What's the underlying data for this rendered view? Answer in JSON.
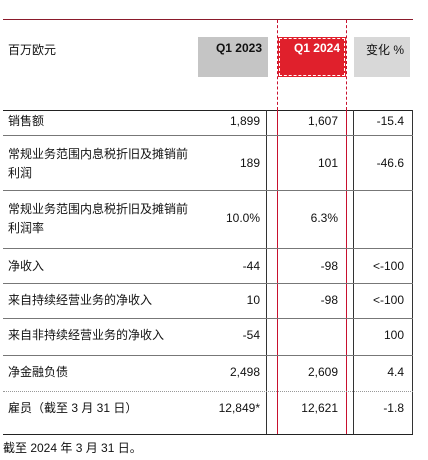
{
  "header": {
    "label": "百万欧元",
    "col1": "Q1 2023",
    "col2": "Q1 2024",
    "col3": "变化 %"
  },
  "rows": [
    {
      "label": "销售额",
      "v1": "1,899",
      "v2": "1,607",
      "v3": "-15.4"
    },
    {
      "label": "常规业务范围内息税折旧及摊销前利润",
      "v1": "189",
      "v2": "101",
      "v3": "-46.6"
    },
    {
      "label": "常规业务范围内息税折旧及摊销前利润率",
      "v1": "10.0%",
      "v2": "6.3%",
      "v3": ""
    },
    {
      "label": "净收入",
      "v1": "-44",
      "v2": "-98",
      "v3": "<-100"
    },
    {
      "label": "来自持续经营业务的净收入",
      "v1": "10",
      "v2": "-98",
      "v3": "<-100"
    },
    {
      "label": "来自非持续经营业务的净收入",
      "v1": "-54",
      "v2": "",
      "v3": "100"
    },
    {
      "label": "净金融负债",
      "v1": "2,498",
      "v2": "2,609",
      "v3": "4.4"
    },
    {
      "label": "雇员（截至 3 月 31 日）",
      "v1": "12,849*",
      "v2": "12,621",
      "v3": "-1.8"
    }
  ],
  "footnote": "截至 2024 年 3 月 31 日。",
  "colors": {
    "accent": "#e0202c",
    "header_gray": "#c5c5c5",
    "rule": "#8a1a2b"
  }
}
